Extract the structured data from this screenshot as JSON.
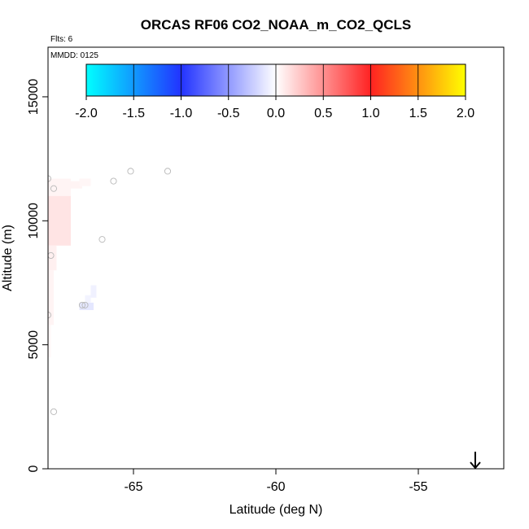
{
  "chart_data": {
    "type": "heatmap",
    "title": "ORCAS RF06 CO2_NOAA_m_CO2_QCLS",
    "flights_label": "Flts: 6",
    "date_label": "MMDD: 0125",
    "xlabel": "Latitude (deg N)",
    "ylabel": "Altitude (m)",
    "xlim": [
      -68.0,
      -52.0
    ],
    "ylim": [
      0,
      17000
    ],
    "x_ticks": [
      {
        "value": -65,
        "label": "-65"
      },
      {
        "value": -60,
        "label": "-60"
      },
      {
        "value": -55,
        "label": "-55"
      }
    ],
    "y_ticks": [
      {
        "value": 0,
        "label": "0"
      },
      {
        "value": 5000,
        "label": "5000"
      },
      {
        "value": 10000,
        "label": "10000"
      },
      {
        "value": 15000,
        "label": "15000"
      }
    ],
    "colorbar": {
      "range": [
        -2.0,
        2.0
      ],
      "ticks": [
        {
          "value": -2.0,
          "label": "-2.0"
        },
        {
          "value": -1.5,
          "label": "-1.5"
        },
        {
          "value": -1.0,
          "label": "-1.0"
        },
        {
          "value": -0.5,
          "label": "-0.5"
        },
        {
          "value": 0.0,
          "label": "0.0"
        },
        {
          "value": 0.5,
          "label": "0.5"
        },
        {
          "value": 1.0,
          "label": "1.0"
        },
        {
          "value": 1.5,
          "label": "1.5"
        },
        {
          "value": 2.0,
          "label": "2.0"
        }
      ],
      "color_stops": [
        {
          "value": -2.0,
          "color": "#00ffff"
        },
        {
          "value": -1.0,
          "color": "#2233ff"
        },
        {
          "value": 0.0,
          "color": "#ffffff"
        },
        {
          "value": 1.0,
          "color": "#ff2222"
        },
        {
          "value": 2.0,
          "color": "#ffff00"
        }
      ]
    },
    "cells": [
      {
        "lat": [
          -68.0,
          -67.2
        ],
        "alt": [
          11000,
          11700
        ],
        "value": 0.05
      },
      {
        "lat": [
          -67.2,
          -66.8
        ],
        "alt": [
          11300,
          11600
        ],
        "value": 0.05
      },
      {
        "lat": [
          -66.9,
          -66.5
        ],
        "alt": [
          11400,
          11700
        ],
        "value": 0.04
      },
      {
        "lat": [
          -68.0,
          -67.2
        ],
        "alt": [
          9000,
          11000
        ],
        "value": 0.12
      },
      {
        "lat": [
          -68.0,
          -67.7
        ],
        "alt": [
          8000,
          9000
        ],
        "value": 0.07
      },
      {
        "lat": [
          -68.0,
          -67.8
        ],
        "alt": [
          5800,
          8000
        ],
        "value": 0.05
      },
      {
        "lat": [
          -68.0,
          -67.9
        ],
        "alt": [
          4500,
          5800
        ],
        "value": 0.03
      },
      {
        "lat": [
          -66.9,
          -66.4
        ],
        "alt": [
          6400,
          6700
        ],
        "value": -0.12
      },
      {
        "lat": [
          -66.7,
          -66.5
        ],
        "alt": [
          6700,
          7000
        ],
        "value": -0.06
      },
      {
        "lat": [
          -66.5,
          -66.3
        ],
        "alt": [
          6900,
          7400
        ],
        "value": -0.07
      }
    ],
    "points": [
      {
        "lat": -65.1,
        "alt": 12000
      },
      {
        "lat": -63.8,
        "alt": 12000
      },
      {
        "lat": -65.7,
        "alt": 11600
      },
      {
        "lat": -67.8,
        "alt": 11300
      },
      {
        "lat": -68.0,
        "alt": 11700
      },
      {
        "lat": -66.1,
        "alt": 9250
      },
      {
        "lat": -67.9,
        "alt": 8600
      },
      {
        "lat": -66.7,
        "alt": 6600
      },
      {
        "lat": -66.8,
        "alt": 6600
      },
      {
        "lat": -68.0,
        "alt": 6200
      },
      {
        "lat": -67.8,
        "alt": 2300
      }
    ],
    "marker_arrow": {
      "lat": -53.0,
      "alt": 0
    }
  }
}
